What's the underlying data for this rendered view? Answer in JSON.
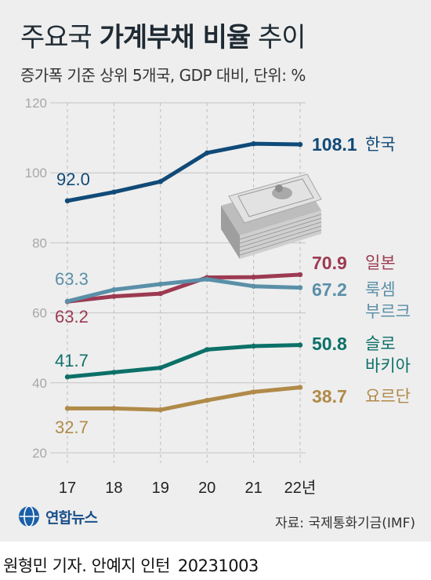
{
  "header": {
    "title_light": "주요국",
    "title_bold": "가계부채 비율",
    "title_end": "추이",
    "subtitle": "증가폭 기준 상위 5개국, GDP 대비, 단위: %"
  },
  "footer": {
    "logo_text": "연합뉴스",
    "source": "자료: 국제통화기금(IMF)",
    "credit": "원형민 기자. 안예지 인턴",
    "date": "20231003"
  },
  "colors": {
    "korea": "#104a78",
    "japan": "#9c3a52",
    "luxembourg": "#5a8fa8",
    "slovakia": "#0c7068",
    "jordan": "#b08a48"
  },
  "chart_data": {
    "type": "line",
    "title": "주요국 가계부채 비율 추이",
    "x": [
      "17",
      "18",
      "19",
      "20",
      "21",
      "22년"
    ],
    "ylim": [
      20,
      120
    ],
    "yticks": [
      20,
      40,
      60,
      80,
      100,
      120
    ],
    "grid": true,
    "series": [
      {
        "key": "korea",
        "name": "한국",
        "values": [
          92.0,
          94.5,
          97.5,
          105.7,
          108.3,
          108.1
        ],
        "first_label": "92.0",
        "last_label": "108.1"
      },
      {
        "key": "japan",
        "name": "일본",
        "values": [
          63.2,
          64.7,
          65.5,
          70.1,
          70.2,
          70.9
        ],
        "first_label": "63.2",
        "last_label": "70.9"
      },
      {
        "key": "luxembourg",
        "name": "룩셈부르크",
        "name_lines": [
          "룩셈",
          "부르크"
        ],
        "values": [
          63.3,
          66.6,
          68.2,
          69.6,
          67.6,
          67.2
        ],
        "first_label": "63.3",
        "last_label": "67.2"
      },
      {
        "key": "slovakia",
        "name": "슬로바키아",
        "name_lines": [
          "슬로",
          "바키아"
        ],
        "values": [
          41.7,
          43.0,
          44.3,
          49.5,
          50.5,
          50.8
        ],
        "first_label": "41.7",
        "last_label": "50.8"
      },
      {
        "key": "jordan",
        "name": "요르단",
        "values": [
          32.7,
          32.7,
          32.3,
          35.0,
          37.4,
          38.7
        ],
        "first_label": "32.7",
        "last_label": "38.7"
      }
    ]
  }
}
